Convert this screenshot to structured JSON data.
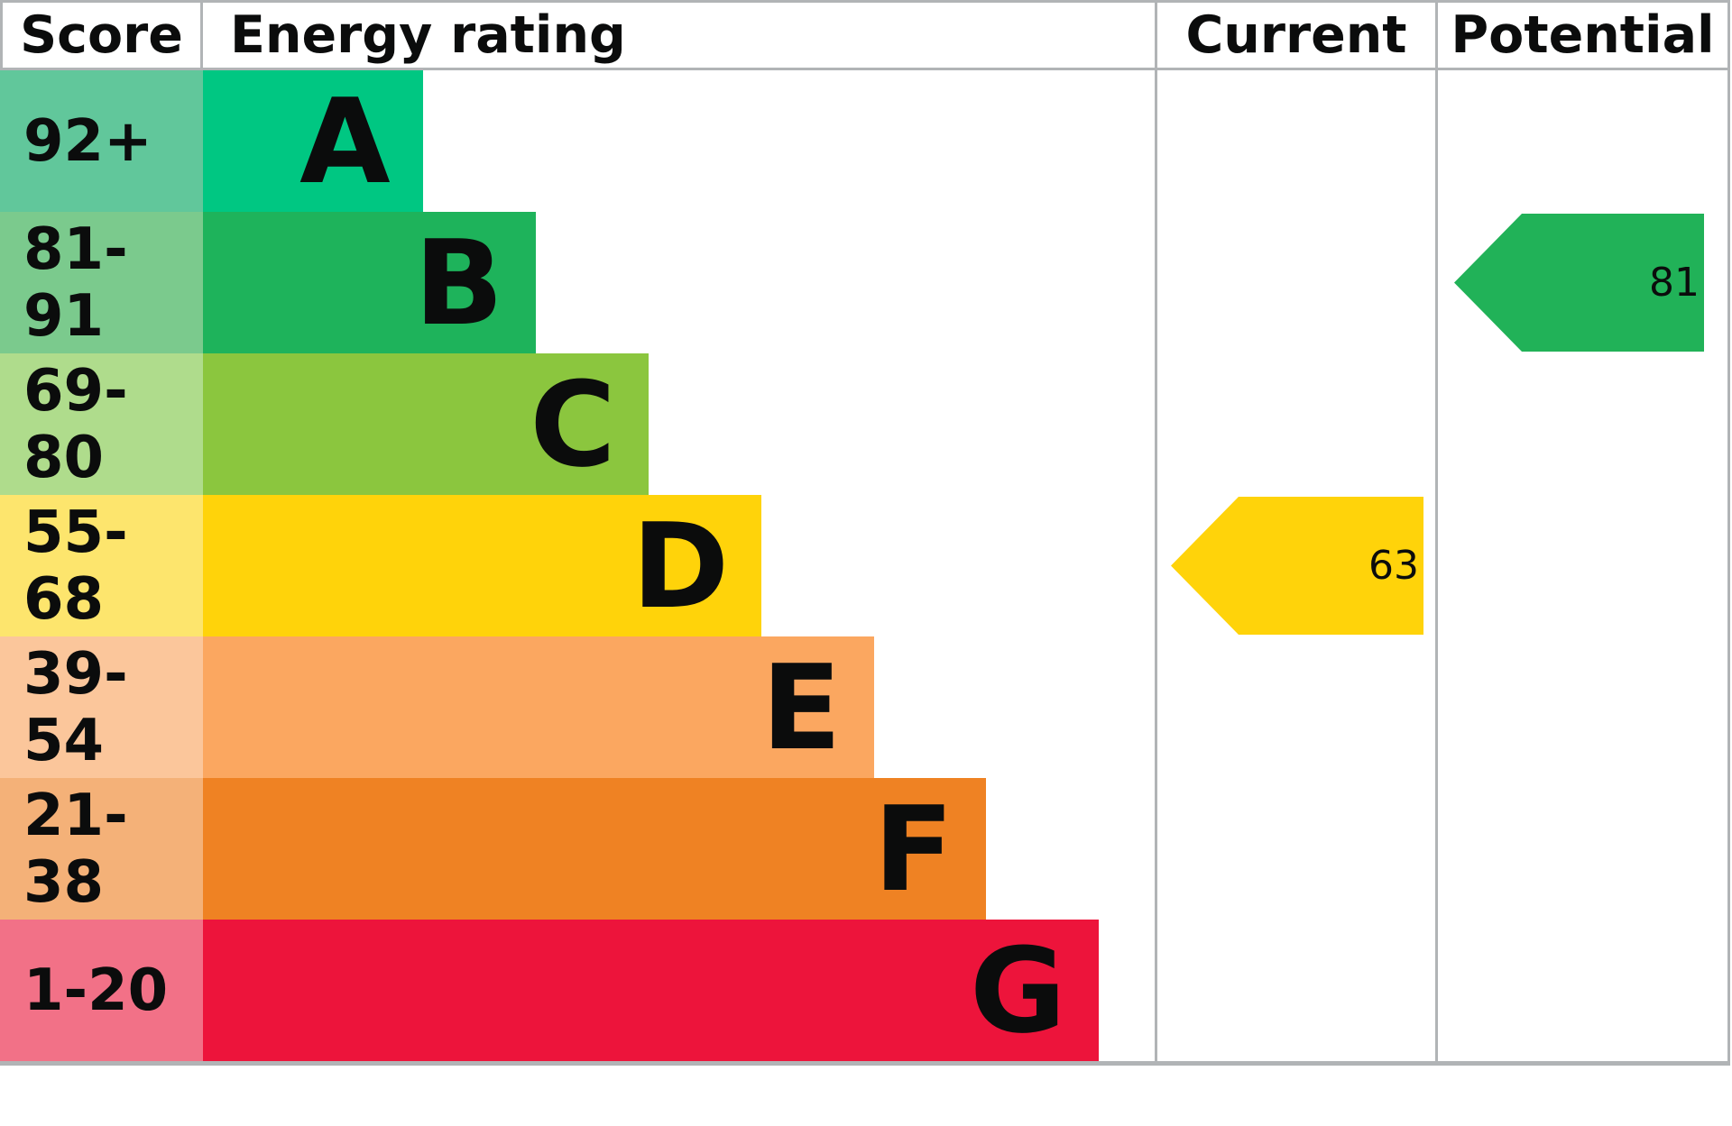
{
  "header": {
    "score": "Score",
    "energy_rating": "Energy rating",
    "current": "Current",
    "potential": "Potential"
  },
  "current_rating": 63,
  "potential_rating": 81,
  "colors": {
    "border": "#b1b4b6",
    "text": "#0b0c0c",
    "current_arrow": "#ffd30a",
    "potential_arrow": "#21b258"
  },
  "chart_data": {
    "type": "bar",
    "title": "Energy rating",
    "columns": [
      "Score",
      "Energy rating",
      "Current",
      "Potential"
    ],
    "legend_position": "none",
    "grid": false,
    "bands": [
      {
        "letter": "A",
        "score": "92+",
        "min": 92,
        "max": 100,
        "bar_color": "#00c782",
        "score_color": "#61c79b",
        "bar_width": "23.1%"
      },
      {
        "letter": "B",
        "score": "81-91",
        "min": 81,
        "max": 91,
        "bar_color": "#1eb35b",
        "score_color": "#7bca8d",
        "bar_width": "35%",
        "potential": {
          "value": 81,
          "color": "#21b258"
        }
      },
      {
        "letter": "C",
        "score": "69-80",
        "min": 69,
        "max": 80,
        "bar_color": "#8bc63e",
        "score_color": "#afdc8c",
        "bar_width": "46.8%"
      },
      {
        "letter": "D",
        "score": "55-68",
        "min": 55,
        "max": 68,
        "bar_color": "#ffd30a",
        "score_color": "#fde56d",
        "bar_width": "58.7%",
        "current": {
          "value": 63,
          "color": "#ffd30a"
        }
      },
      {
        "letter": "E",
        "score": "39-54",
        "min": 39,
        "max": 54,
        "bar_color": "#fba760",
        "score_color": "#fbc69b",
        "bar_width": "70.5%"
      },
      {
        "letter": "F",
        "score": "21-38",
        "min": 21,
        "max": 38,
        "bar_color": "#ef8223",
        "score_color": "#f4b178",
        "bar_width": "82.3%"
      },
      {
        "letter": "G",
        "score": "1-20",
        "min": 1,
        "max": 20,
        "bar_color": "#ed143b",
        "score_color": "#f27187",
        "bar_width": "94.1%"
      }
    ]
  }
}
